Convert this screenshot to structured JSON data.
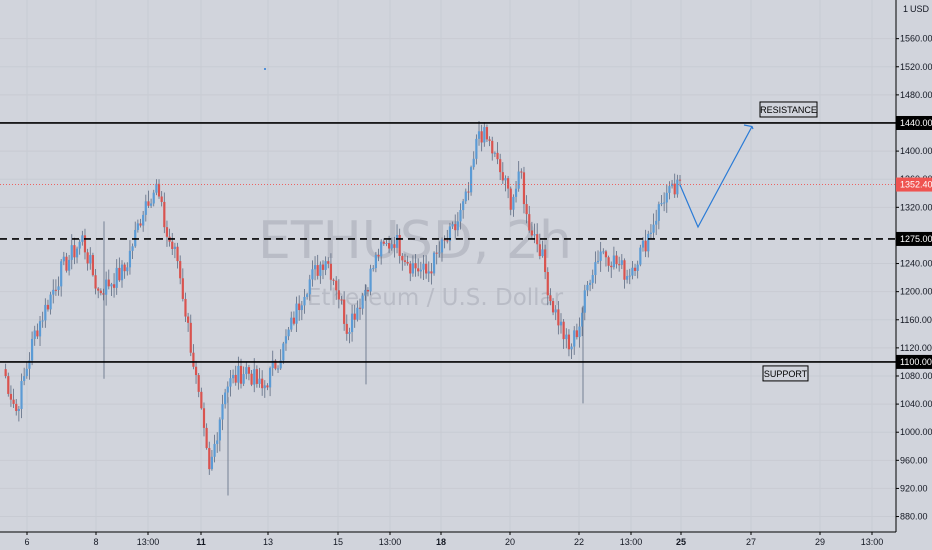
{
  "chart_data": {
    "type": "candlestick",
    "symbol_watermark": "ETHUSD, 2h",
    "subtitle_watermark": "Ethereum / U.S. Dollar",
    "currency_label": "USD",
    "currency_prefix": "1",
    "y_ticks": [
      "1560.00",
      "1520.00",
      "1480.00",
      "1400.00",
      "1360.00",
      "1320.00",
      "1240.00",
      "1200.00",
      "1160.00",
      "1120.00",
      "1080.00",
      "1040.00",
      "1000.00",
      "960.00",
      "920.00",
      "880.00"
    ],
    "y_tick_values": [
      1560,
      1520,
      1480,
      1400,
      1360,
      1320,
      1240,
      1200,
      1160,
      1120,
      1080,
      1040,
      1000,
      960,
      920,
      880
    ],
    "ylim": [
      858,
      1615
    ],
    "x_ticks": [
      {
        "label": "6",
        "bold": false
      },
      {
        "label": "8",
        "bold": false
      },
      {
        "label": "13:00",
        "bold": false
      },
      {
        "label": "11",
        "bold": true
      },
      {
        "label": "13",
        "bold": false
      },
      {
        "label": "15",
        "bold": false
      },
      {
        "label": "13:00",
        "bold": false
      },
      {
        "label": "18",
        "bold": true
      },
      {
        "label": "20",
        "bold": false
      },
      {
        "label": "22",
        "bold": false
      },
      {
        "label": "13:00",
        "bold": false
      },
      {
        "label": "25",
        "bold": true
      },
      {
        "label": "27",
        "bold": false
      },
      {
        "label": "29",
        "bold": false
      },
      {
        "label": "13:00",
        "bold": false
      }
    ],
    "levels": [
      {
        "value": 1440.0,
        "label": "1440.00",
        "style": "solid",
        "color": "#000000",
        "name": "RESISTANCE"
      },
      {
        "value": 1275.0,
        "label": "1275.00",
        "style": "dashed",
        "color": "#000000",
        "name": ""
      },
      {
        "value": 1100.0,
        "label": "1100.00",
        "style": "solid",
        "color": "#000000",
        "name": "SUPPORT"
      }
    ],
    "last_price": {
      "value": 1352.4,
      "label": "1352.40",
      "color": "#ef5350"
    },
    "level_boxes": {
      "resistance": "RESISTANCE",
      "support": "SUPPORT"
    },
    "projection": [
      [
        0,
        1352
      ],
      [
        1,
        1292
      ],
      [
        2,
        1435
      ]
    ],
    "candles_keypoints": [
      [
        0,
        1090
      ],
      [
        5,
        1030
      ],
      [
        12,
        1140
      ],
      [
        22,
        1230
      ],
      [
        30,
        1275
      ],
      [
        36,
        1200
      ],
      [
        46,
        1230
      ],
      [
        54,
        1330
      ],
      [
        58,
        1348
      ],
      [
        62,
        1280
      ],
      [
        66,
        1245
      ],
      [
        72,
        1100
      ],
      [
        78,
        940
      ],
      [
        84,
        1065
      ],
      [
        92,
        1090
      ],
      [
        98,
        1060
      ],
      [
        106,
        1120
      ],
      [
        114,
        1205
      ],
      [
        122,
        1250
      ],
      [
        126,
        1210
      ],
      [
        130,
        1150
      ],
      [
        136,
        1195
      ],
      [
        142,
        1255
      ],
      [
        148,
        1275
      ],
      [
        154,
        1240
      ],
      [
        160,
        1225
      ],
      [
        166,
        1262
      ],
      [
        171,
        1290
      ],
      [
        176,
        1340
      ],
      [
        180,
        1430
      ],
      [
        184,
        1410
      ],
      [
        188,
        1370
      ],
      [
        192,
        1330
      ],
      [
        196,
        1365
      ],
      [
        198,
        1305
      ],
      [
        203,
        1265
      ],
      [
        207,
        1190
      ],
      [
        211,
        1150
      ],
      [
        214,
        1115
      ],
      [
        218,
        1155
      ],
      [
        222,
        1225
      ],
      [
        226,
        1260
      ],
      [
        230,
        1248
      ],
      [
        236,
        1225
      ],
      [
        242,
        1262
      ],
      [
        246,
        1300
      ],
      [
        250,
        1335
      ],
      [
        254,
        1342
      ],
      [
        256,
        1350
      ]
    ],
    "colors": {
      "up": "#26a69a",
      "down": "#ef5350",
      "upfill": "#5b9bd5",
      "downfill": "#d9534f",
      "wick": "#6b7c93",
      "projection": "#2a7bd6"
    }
  }
}
